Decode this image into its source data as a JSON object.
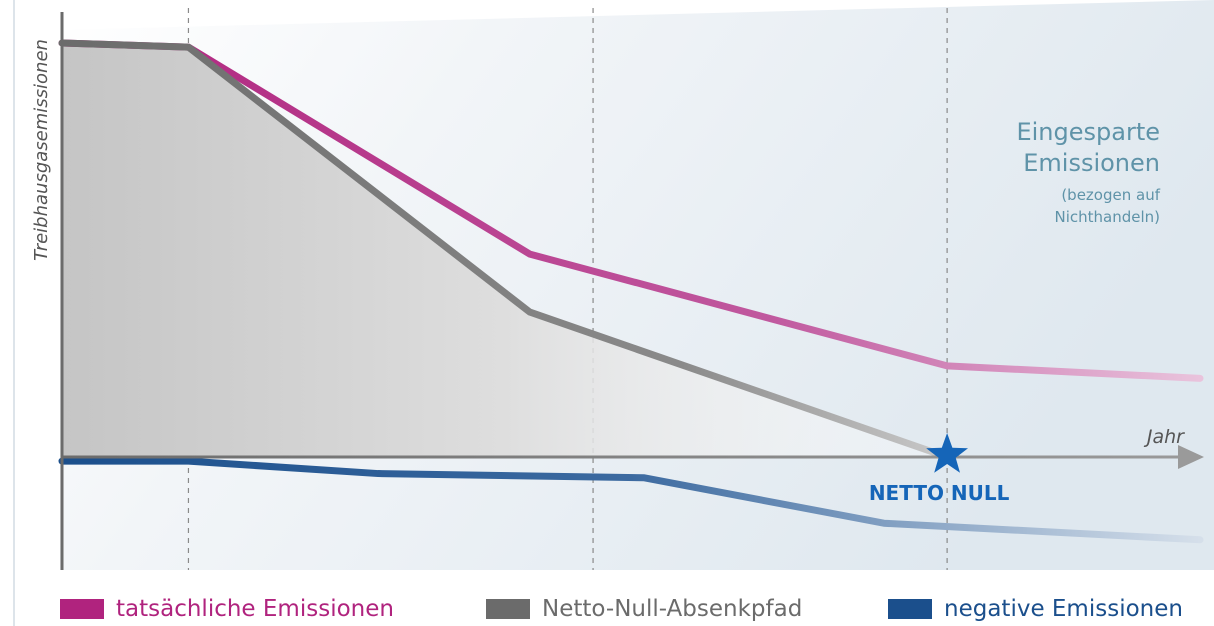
{
  "chart_data": {
    "type": "line",
    "ylabel": "Treibhausgasemissionen",
    "xlabel": "Jahr",
    "xlim": [
      0,
      9
    ],
    "ylim": [
      -0.25,
      1.0
    ],
    "series": [
      {
        "name": "tatsächliche Emissionen",
        "color": "#b0237e",
        "x": [
          0,
          1,
          3.7,
          7,
          9
        ],
        "y": [
          1.0,
          0.99,
          0.49,
          0.22,
          0.19
        ]
      },
      {
        "name": "Netto-Null-Absenkpfad",
        "color": "#6b6b6b",
        "x": [
          0,
          1,
          3.7,
          7
        ],
        "y": [
          1.0,
          0.99,
          0.35,
          0.0
        ]
      },
      {
        "name": "negative Emissionen",
        "color": "#1b4f8c",
        "x": [
          0,
          1,
          2.5,
          4.6,
          6.5,
          9
        ],
        "y": [
          -0.01,
          -0.01,
          -0.04,
          -0.05,
          -0.16,
          -0.2
        ]
      }
    ],
    "annotations": {
      "savings_title_line1": "Eingesparte",
      "savings_title_line2": "Emissionen",
      "savings_note_line1": "(bezogen auf",
      "savings_note_line2": "Nichthandeln)",
      "net_zero_label": "NETTO NULL",
      "net_zero_x": 7
    },
    "colors": {
      "axis": "#6b6b6b",
      "annotation": "#5f93a8",
      "net_zero": "#1565b8"
    }
  },
  "legend": {
    "actual": "tatsächliche Emissionen",
    "netzero_path": "Netto-Null-Absenkpfad",
    "negative": "negative Emissionen"
  }
}
